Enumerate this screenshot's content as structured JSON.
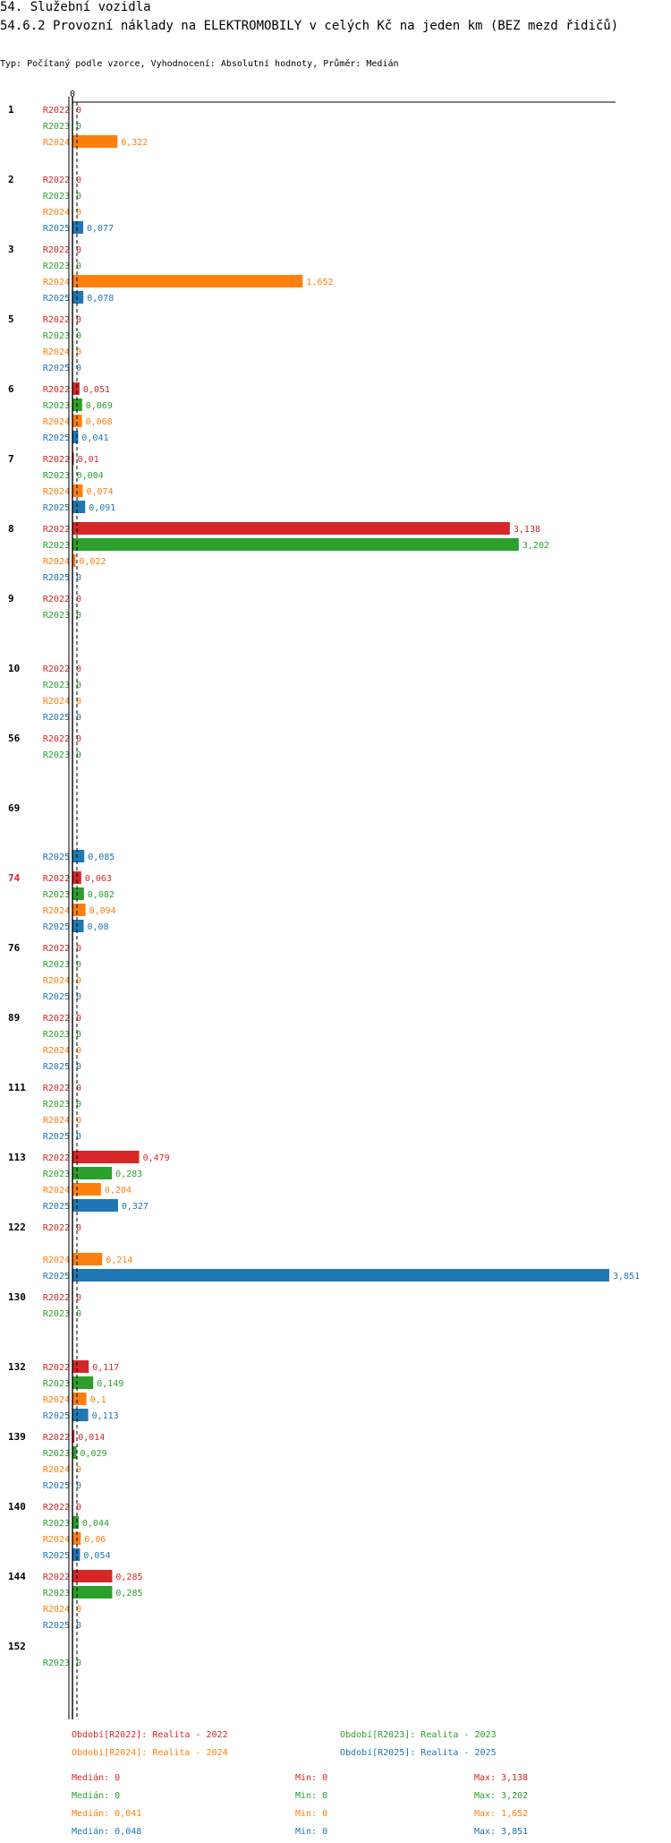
{
  "header": {
    "title": "54. Služební vozidla",
    "subtitle": "54.6.2 Provozní náklady na ELEKTROMOBILY v celých Kč na jeden km (BEZ mezd řidičů)",
    "info": "Typ: Počítaný podle vzorce, Vyhodnocení: Absolutní hodnoty, Průměr: Medián"
  },
  "colors": {
    "R2022": "#d62728",
    "R2023": "#2ca02c",
    "R2024": "#ff7f0e",
    "R2025": "#1f77b4",
    "highlight": "#d62728"
  },
  "chart_data": {
    "type": "bar",
    "orientation": "horizontal",
    "zero_label": "0",
    "xlim": [
      0,
      3.851
    ],
    "groups": [
      {
        "label": "1",
        "rows": [
          {
            "s": "R2022",
            "v": 0,
            "t": "0"
          },
          {
            "s": "R2023",
            "v": 0,
            "t": "0"
          },
          {
            "s": "R2024",
            "v": 0.322,
            "t": "0,322"
          }
        ]
      },
      {
        "label": "2",
        "rows": [
          {
            "s": "R2022",
            "v": 0,
            "t": "0"
          },
          {
            "s": "R2023",
            "v": 0,
            "t": "0"
          },
          {
            "s": "R2024",
            "v": 0,
            "t": "0"
          },
          {
            "s": "R2025",
            "v": 0.077,
            "t": "0,077"
          }
        ]
      },
      {
        "label": "3",
        "rows": [
          {
            "s": "R2022",
            "v": 0,
            "t": "0"
          },
          {
            "s": "R2023",
            "v": 0,
            "t": "0"
          },
          {
            "s": "R2024",
            "v": 1.652,
            "t": "1,652"
          },
          {
            "s": "R2025",
            "v": 0.078,
            "t": "0,078"
          }
        ]
      },
      {
        "label": "5",
        "rows": [
          {
            "s": "R2022",
            "v": 0,
            "t": "0"
          },
          {
            "s": "R2023",
            "v": 0,
            "t": "0"
          },
          {
            "s": "R2024",
            "v": 0,
            "t": "0"
          },
          {
            "s": "R2025",
            "v": 0,
            "t": "0"
          }
        ]
      },
      {
        "label": "6",
        "rows": [
          {
            "s": "R2022",
            "v": 0.051,
            "t": "0,051"
          },
          {
            "s": "R2023",
            "v": 0.069,
            "t": "0,069"
          },
          {
            "s": "R2024",
            "v": 0.068,
            "t": "0,068"
          },
          {
            "s": "R2025",
            "v": 0.041,
            "t": "0,041"
          }
        ]
      },
      {
        "label": "7",
        "rows": [
          {
            "s": "R2022",
            "v": 0.01,
            "t": "0,01"
          },
          {
            "s": "R2023",
            "v": 0.004,
            "t": "0,004"
          },
          {
            "s": "R2024",
            "v": 0.074,
            "t": "0,074"
          },
          {
            "s": "R2025",
            "v": 0.091,
            "t": "0,091"
          }
        ]
      },
      {
        "label": "8",
        "rows": [
          {
            "s": "R2022",
            "v": 3.138,
            "t": "3,138"
          },
          {
            "s": "R2023",
            "v": 3.202,
            "t": "3,202"
          },
          {
            "s": "R2024",
            "v": 0.022,
            "t": "0,022"
          },
          {
            "s": "R2025",
            "v": 0,
            "t": "0"
          }
        ]
      },
      {
        "label": "9",
        "rows": [
          {
            "s": "R2022",
            "v": 0,
            "t": "0"
          },
          {
            "s": "R2023",
            "v": 0,
            "t": "0"
          }
        ]
      },
      {
        "label": "10",
        "rows": [
          {
            "s": "R2022",
            "v": 0,
            "t": "0"
          },
          {
            "s": "R2023",
            "v": 0,
            "t": "0"
          },
          {
            "s": "R2024",
            "v": 0,
            "t": "0"
          },
          {
            "s": "R2025",
            "v": 0,
            "t": "0"
          }
        ]
      },
      {
        "label": "56",
        "rows": [
          {
            "s": "R2022",
            "v": 0,
            "t": "0"
          },
          {
            "s": "R2023",
            "v": 0,
            "t": "0"
          }
        ]
      },
      {
        "label": "69",
        "rows": [
          {
            "s": "R2025",
            "v": 0.085,
            "t": "0,085"
          }
        ]
      },
      {
        "label": "74",
        "highlight": true,
        "rows": [
          {
            "s": "R2022",
            "v": 0.063,
            "t": "0,063"
          },
          {
            "s": "R2023",
            "v": 0.082,
            "t": "0,082"
          },
          {
            "s": "R2024",
            "v": 0.094,
            "t": "0,094"
          },
          {
            "s": "R2025",
            "v": 0.08,
            "t": "0,08"
          }
        ]
      },
      {
        "label": "76",
        "rows": [
          {
            "s": "R2022",
            "v": 0,
            "t": "0"
          },
          {
            "s": "R2023",
            "v": 0,
            "t": "0"
          },
          {
            "s": "R2024",
            "v": 0,
            "t": "0"
          },
          {
            "s": "R2025",
            "v": 0,
            "t": "0"
          }
        ]
      },
      {
        "label": "89",
        "rows": [
          {
            "s": "R2022",
            "v": 0,
            "t": "0"
          },
          {
            "s": "R2023",
            "v": 0,
            "t": "0"
          },
          {
            "s": "R2024",
            "v": 0,
            "t": "0"
          },
          {
            "s": "R2025",
            "v": 0,
            "t": "0"
          }
        ]
      },
      {
        "label": "111",
        "rows": [
          {
            "s": "R2022",
            "v": 0,
            "t": "0"
          },
          {
            "s": "R2023",
            "v": 0,
            "t": "0"
          },
          {
            "s": "R2024",
            "v": 0,
            "t": "0"
          },
          {
            "s": "R2025",
            "v": 0,
            "t": "0"
          }
        ]
      },
      {
        "label": "113",
        "rows": [
          {
            "s": "R2022",
            "v": 0.479,
            "t": "0,479"
          },
          {
            "s": "R2023",
            "v": 0.283,
            "t": "0,283"
          },
          {
            "s": "R2024",
            "v": 0.204,
            "t": "0,204"
          },
          {
            "s": "R2025",
            "v": 0.327,
            "t": "0,327"
          }
        ]
      },
      {
        "label": "122",
        "rows": [
          {
            "s": "R2022",
            "v": 0,
            "t": "0"
          },
          {
            "s": "R2024",
            "v": 0.214,
            "t": "0,214"
          },
          {
            "s": "R2025",
            "v": 3.851,
            "t": "3,851"
          }
        ]
      },
      {
        "label": "130",
        "rows": [
          {
            "s": "R2022",
            "v": 0,
            "t": "0"
          },
          {
            "s": "R2023",
            "v": 0,
            "t": "0"
          }
        ]
      },
      {
        "label": "132",
        "rows": [
          {
            "s": "R2022",
            "v": 0.117,
            "t": "0,117"
          },
          {
            "s": "R2023",
            "v": 0.149,
            "t": "0,149"
          },
          {
            "s": "R2024",
            "v": 0.1,
            "t": "0,1"
          },
          {
            "s": "R2025",
            "v": 0.113,
            "t": "0,113"
          }
        ]
      },
      {
        "label": "139",
        "rows": [
          {
            "s": "R2022",
            "v": 0.014,
            "t": "0,014"
          },
          {
            "s": "R2023",
            "v": 0.029,
            "t": "0,029"
          },
          {
            "s": "R2024",
            "v": 0,
            "t": "0"
          },
          {
            "s": "R2025",
            "v": 0,
            "t": "0"
          }
        ]
      },
      {
        "label": "140",
        "rows": [
          {
            "s": "R2022",
            "v": 0,
            "t": "0"
          },
          {
            "s": "R2023",
            "v": 0.044,
            "t": "0,044"
          },
          {
            "s": "R2024",
            "v": 0.06,
            "t": "0,06"
          },
          {
            "s": "R2025",
            "v": 0.054,
            "t": "0,054"
          }
        ]
      },
      {
        "label": "144",
        "rows": [
          {
            "s": "R2022",
            "v": 0.285,
            "t": "0,285"
          },
          {
            "s": "R2023",
            "v": 0.285,
            "t": "0,285"
          },
          {
            "s": "R2024",
            "v": 0,
            "t": "0"
          },
          {
            "s": "R2025",
            "v": 0,
            "t": "0"
          }
        ]
      },
      {
        "label": "152",
        "rows": [
          {
            "s": "R2023",
            "v": 0,
            "t": "0"
          }
        ]
      }
    ]
  },
  "legend": [
    {
      "s": "R2022",
      "text": "Období[R2022]: Realita - 2022"
    },
    {
      "s": "R2023",
      "text": "Období[R2023]: Realita - 2023"
    },
    {
      "s": "R2024",
      "text": "Období[R2024]: Realita - 2024"
    },
    {
      "s": "R2025",
      "text": "Období[R2025]: Realita - 2025"
    }
  ],
  "stats": [
    {
      "s": "R2022",
      "median": "Medián: 0",
      "min": "Min: 0",
      "max": "Max: 3,138"
    },
    {
      "s": "R2023",
      "median": "Medián: 0",
      "min": "Min: 0",
      "max": "Max: 3,202"
    },
    {
      "s": "R2024",
      "median": "Medián: 0,041",
      "min": "Min: 0",
      "max": "Max: 1,652"
    },
    {
      "s": "R2025",
      "median": "Medián: 0,048",
      "min": "Min: 0",
      "max": "Max: 3,851"
    }
  ]
}
